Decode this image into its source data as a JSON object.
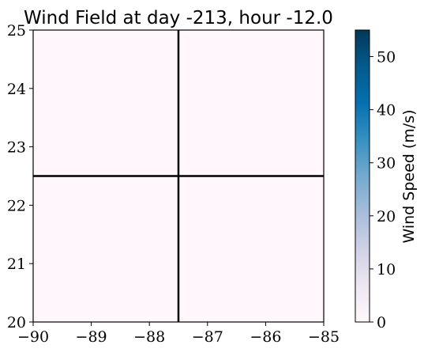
{
  "chart_data": {
    "type": "heatmap",
    "title": "Wind Field at day -213, hour -12.0",
    "xlabel": "",
    "ylabel": "",
    "xlim": [
      -90,
      -85
    ],
    "ylim": [
      20,
      25
    ],
    "x_ticks": [
      -90,
      -89,
      -88,
      -87,
      -86,
      -85
    ],
    "x_tick_labels": [
      "−90",
      "−89",
      "−88",
      "−87",
      "−86",
      "−85"
    ],
    "y_ticks": [
      20,
      21,
      22,
      23,
      24,
      25
    ],
    "y_tick_labels": [
      "20",
      "21",
      "22",
      "23",
      "24",
      "25"
    ],
    "grid_lines": {
      "x": [
        -87.5
      ],
      "y": [
        22.5
      ]
    },
    "cells": [
      {
        "x_range": [
          -90,
          -87.5
        ],
        "y_range": [
          20,
          22.5
        ],
        "value": 0
      },
      {
        "x_range": [
          -87.5,
          -85
        ],
        "y_range": [
          20,
          22.5
        ],
        "value": 0
      },
      {
        "x_range": [
          -90,
          -87.5
        ],
        "y_range": [
          22.5,
          25
        ],
        "value": 0
      },
      {
        "x_range": [
          -87.5,
          -85
        ],
        "y_range": [
          22.5,
          25
        ],
        "value": 0
      }
    ],
    "colorbar": {
      "label": "Wind Speed (m/s)",
      "range": [
        0,
        55
      ],
      "ticks": [
        0,
        10,
        20,
        30,
        40,
        50
      ],
      "tick_labels": [
        "0",
        "10",
        "20",
        "30",
        "40",
        "50"
      ],
      "colormap": "PuBu",
      "colors": [
        "#fff7fb",
        "#ece7f2",
        "#d0d1e6",
        "#a6bddb",
        "#74a9cf",
        "#3690c0",
        "#0570b0",
        "#045a8d",
        "#023858"
      ]
    }
  }
}
